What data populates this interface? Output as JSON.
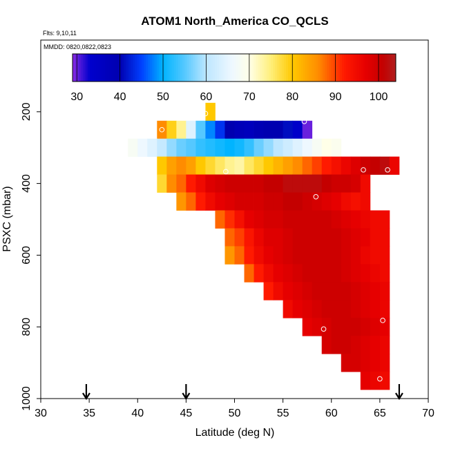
{
  "chart_data": {
    "type": "heatmap",
    "title": "ATOM1 North_America CO_QCLS",
    "flights_label": "Flts: 9,10,11",
    "dates_label": "MMDD: 0820,0822,0823",
    "xlabel": "Latitude (deg N)",
    "ylabel": "PSXC (mbar)",
    "xlim": [
      30,
      70
    ],
    "ylim": [
      1000,
      0
    ],
    "xticks": [
      "30",
      "35",
      "40",
      "45",
      "50",
      "55",
      "60",
      "65",
      "70"
    ],
    "yticks": [
      "200",
      "400",
      "600",
      "800",
      "1000"
    ],
    "colorbar": {
      "range": [
        29,
        104
      ],
      "ticks": [
        "30",
        "40",
        "50",
        "60",
        "70",
        "80",
        "90",
        "100"
      ],
      "stops": [
        {
          "v": 29,
          "c": "#8a2be2"
        },
        {
          "v": 33,
          "c": "#0000cd"
        },
        {
          "v": 40,
          "c": "#0000b0"
        },
        {
          "v": 45,
          "c": "#0040ff"
        },
        {
          "v": 50,
          "c": "#00b4ff"
        },
        {
          "v": 55,
          "c": "#55c8ff"
        },
        {
          "v": 60,
          "c": "#bde6ff"
        },
        {
          "v": 66,
          "c": "#eef8ff"
        },
        {
          "v": 70,
          "c": "#ffffe8"
        },
        {
          "v": 75,
          "c": "#ffef7a"
        },
        {
          "v": 80,
          "c": "#ffc800"
        },
        {
          "v": 86,
          "c": "#ff8c00"
        },
        {
          "v": 92,
          "c": "#ff1a00"
        },
        {
          "v": 97,
          "c": "#e60000"
        },
        {
          "v": 101,
          "c": "#c40000"
        },
        {
          "v": 104,
          "c": "#b02020"
        }
      ]
    },
    "cell_size": {
      "lat": 1.0,
      "pres": 50
    },
    "rows": [
      {
        "p": 200,
        "lat_start": 47,
        "values": [
          80
        ]
      },
      {
        "p": 250,
        "lat_start": 42,
        "values": [
          86,
          79,
          74,
          64,
          55,
          48,
          44,
          40,
          38,
          37,
          39,
          40,
          40,
          41,
          34,
          30
        ]
      },
      {
        "p": 300,
        "lat_start": 39,
        "values": [
          68,
          66,
          64,
          61,
          58,
          56,
          55,
          53,
          52,
          51,
          50,
          51,
          53,
          56,
          58,
          60,
          62,
          64,
          66,
          68,
          70,
          69
        ]
      },
      {
        "p": 350,
        "lat_start": 42,
        "values": [
          80,
          84,
          86,
          84,
          80,
          78,
          76,
          74,
          73,
          76,
          78,
          80,
          82,
          84,
          86,
          88,
          90,
          92,
          94,
          96,
          98,
          100,
          101,
          102,
          96
        ]
      },
      {
        "p": 400,
        "lat_start": 42,
        "values": [
          78,
          86,
          88,
          92,
          95,
          98,
          99,
          100,
          100,
          100,
          100,
          101,
          101,
          102,
          102,
          102,
          102,
          101,
          100,
          100,
          99,
          95
        ]
      },
      {
        "p": 450,
        "lat_start": 44,
        "values": [
          85,
          88,
          92,
          95,
          97,
          98,
          99,
          99,
          99,
          100,
          100,
          101,
          101,
          100,
          99,
          98,
          97,
          95,
          94,
          95
        ]
      },
      {
        "p": 500,
        "lat_start": 48,
        "values": [
          88,
          91,
          94,
          97,
          98,
          99,
          99,
          100,
          100,
          100,
          100,
          100,
          99,
          98,
          97,
          96,
          95,
          95
        ]
      },
      {
        "p": 550,
        "lat_start": 49,
        "values": [
          88,
          90,
          93,
          96,
          98,
          98,
          99,
          100,
          100,
          100,
          100,
          100,
          99,
          98,
          97,
          95,
          95
        ]
      },
      {
        "p": 600,
        "lat_start": 49,
        "values": [
          85,
          88,
          92,
          95,
          97,
          98,
          99,
          100,
          100,
          100,
          100,
          100,
          99,
          98,
          96,
          95,
          95
        ]
      },
      {
        "p": 650,
        "lat_start": 51,
        "values": [
          88,
          92,
          95,
          97,
          98,
          99,
          100,
          100,
          100,
          100,
          99,
          98,
          97,
          96,
          95
        ]
      },
      {
        "p": 700,
        "lat_start": 53,
        "values": [
          92,
          95,
          97,
          98,
          99,
          100,
          100,
          100,
          100,
          99,
          98,
          97,
          96
        ]
      },
      {
        "p": 750,
        "lat_start": 55,
        "values": [
          95,
          97,
          98,
          99,
          100,
          100,
          100,
          99,
          98,
          97,
          96
        ]
      },
      {
        "p": 800,
        "lat_start": 57,
        "values": [
          97,
          98,
          99,
          100,
          100,
          100,
          99,
          98,
          97
        ]
      },
      {
        "p": 850,
        "lat_start": 59,
        "values": [
          99,
          100,
          100,
          99,
          98,
          97,
          96
        ]
      },
      {
        "p": 900,
        "lat_start": 61,
        "values": [
          99,
          99,
          98,
          97,
          96
        ]
      },
      {
        "p": 950,
        "lat_start": 63,
        "values": [
          97,
          96,
          95
        ]
      }
    ],
    "markers": [
      {
        "lat": 47.0,
        "p": 205
      },
      {
        "lat": 51.7,
        "p": 215
      },
      {
        "lat": 57.2,
        "p": 227
      },
      {
        "lat": 42.5,
        "p": 250
      },
      {
        "lat": 49.1,
        "p": 367
      },
      {
        "lat": 63.3,
        "p": 362
      },
      {
        "lat": 65.8,
        "p": 362
      },
      {
        "lat": 58.4,
        "p": 437
      },
      {
        "lat": 64.4,
        "p": 452
      },
      {
        "lat": 65.3,
        "p": 782
      },
      {
        "lat": 59.2,
        "p": 806
      },
      {
        "lat": 65.0,
        "p": 945
      }
    ],
    "arrows_lat": [
      34.7,
      45.0,
      67.0
    ]
  }
}
